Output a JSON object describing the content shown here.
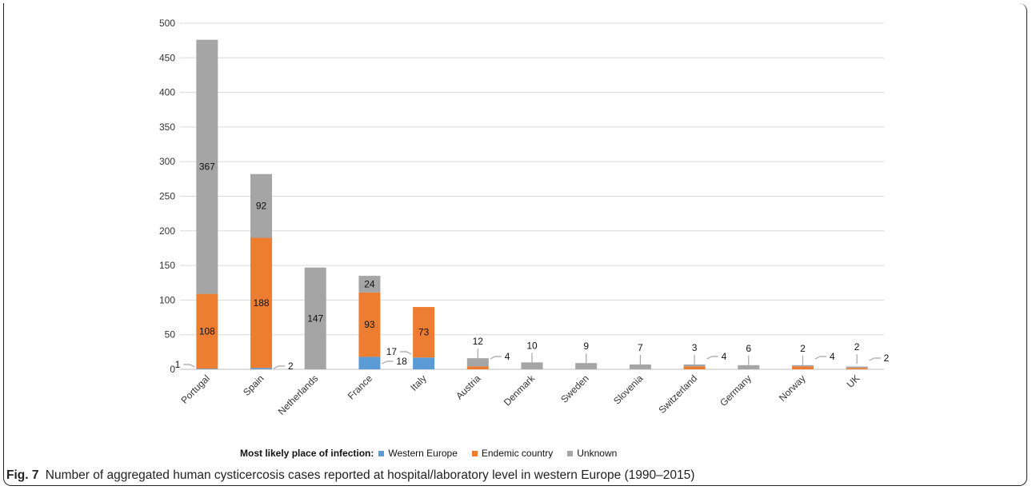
{
  "chart_data": {
    "type": "bar",
    "stacked": true,
    "categories": [
      "Portugal",
      "Spain",
      "Netherlands",
      "France",
      "Italy",
      "Austria",
      "Denmark",
      "Sweden",
      "Slovenia",
      "Switzerland",
      "Germany",
      "Norway",
      "UK"
    ],
    "series": [
      {
        "name": "Western Europe",
        "values": [
          1,
          2,
          0,
          18,
          17,
          0,
          0,
          0,
          0,
          0,
          0,
          0,
          0
        ],
        "color": "#5b9bd5"
      },
      {
        "name": "Endemic country",
        "values": [
          108,
          188,
          0,
          93,
          73,
          4,
          0,
          0,
          0,
          4,
          0,
          4,
          2
        ],
        "color": "#ed7d31"
      },
      {
        "name": "Unknown",
        "values": [
          367,
          92,
          147,
          24,
          0,
          12,
          10,
          9,
          7,
          3,
          6,
          2,
          2
        ],
        "color": "#a5a5a5"
      }
    ],
    "ylim": [
      0,
      500
    ],
    "yticks": [
      0,
      50,
      100,
      150,
      200,
      250,
      300,
      350,
      400,
      450,
      500
    ],
    "grid": true,
    "legend_title": "Most likely place of infection:",
    "legend_position": "bottom"
  },
  "caption": {
    "label": "Fig. 7",
    "text": "Number of aggregated human cysticercosis cases reported at hospital/laboratory level in western Europe (1990–2015)"
  }
}
